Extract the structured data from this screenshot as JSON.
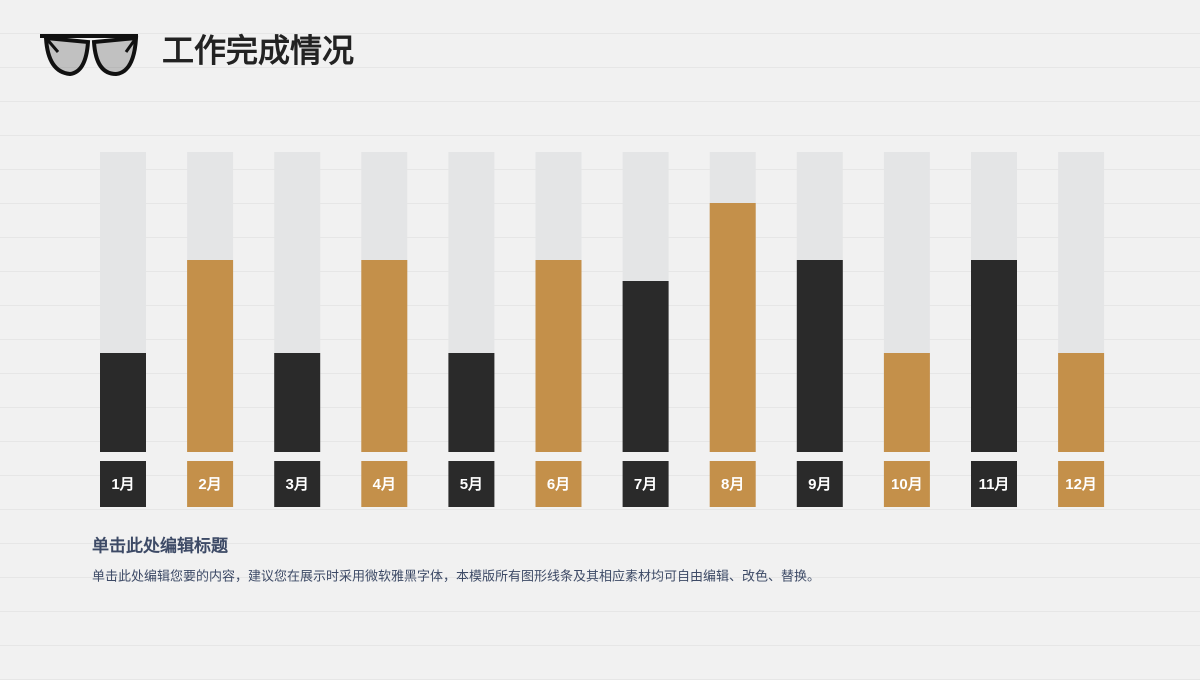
{
  "chart_data": {
    "type": "bar",
    "title": "工作完成情况",
    "categories": [
      "1月",
      "2月",
      "3月",
      "4月",
      "5月",
      "6月",
      "7月",
      "8月",
      "9月",
      "10月",
      "11月",
      "12月"
    ],
    "values": [
      33,
      64,
      33,
      64,
      33,
      64,
      57,
      83,
      64,
      33,
      64,
      33
    ],
    "colors": [
      "#2a2a2a",
      "#c4904a",
      "#2a2a2a",
      "#c4904a",
      "#2a2a2a",
      "#c4904a",
      "#2a2a2a",
      "#c4904a",
      "#2a2a2a",
      "#c4904a",
      "#2a2a2a",
      "#c4904a"
    ],
    "track_color": "#e4e5e6",
    "ylim": [
      0,
      100
    ],
    "caption_title": "单击此处编辑标题",
    "caption": "单击此处编辑您要的内容，建议您在展示时采用微软雅黑字体，本模版所有图形线条及其相应素材均可自由编辑、改色、替换。"
  }
}
